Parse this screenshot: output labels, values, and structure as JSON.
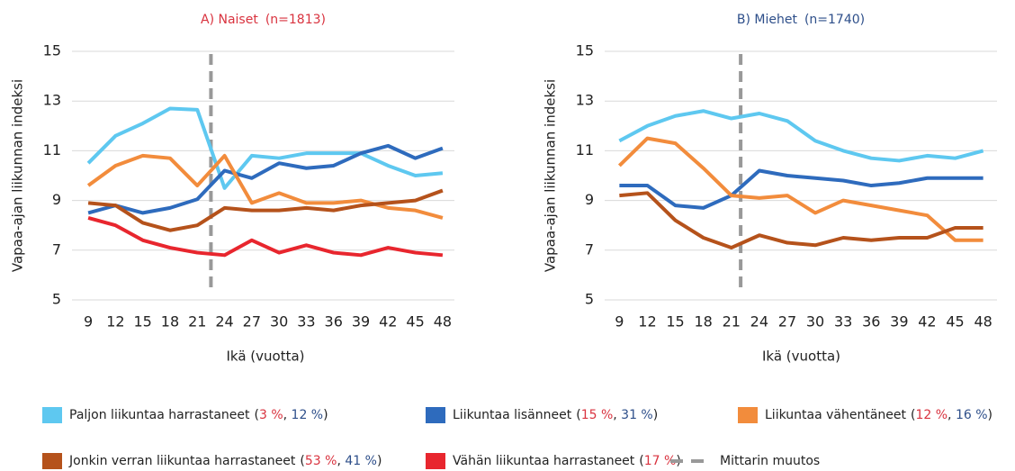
{
  "chart_data": [
    {
      "type": "line",
      "title": "A) Naiset",
      "subtitle": "(n=1813)",
      "title_color": "#d9333f",
      "xlabel": "Ikä (vuotta)",
      "ylabel": "Vapaa-ajan liikunnan indeksi",
      "x": [
        9,
        12,
        15,
        18,
        21,
        24,
        27,
        30,
        33,
        36,
        39,
        42,
        45,
        48
      ],
      "xlim": [
        8,
        49
      ],
      "xticks": [
        9,
        12,
        15,
        18,
        21,
        24,
        27,
        30,
        33,
        36,
        39,
        42,
        45,
        48
      ],
      "ylim": [
        5,
        15
      ],
      "yticks": [
        5,
        7,
        9,
        11,
        13,
        15
      ],
      "grid": true,
      "change_x": 22.5,
      "series": [
        {
          "name": "Paljon liikuntaa harrastaneet",
          "color": "#5ec8f0",
          "share": {
            "value": 3,
            "label": "3 %"
          },
          "values": [
            10.5,
            11.6,
            12.1,
            12.7,
            12.65,
            9.5,
            10.8,
            10.7,
            10.9,
            10.9,
            10.9,
            10.4,
            10.0,
            10.1
          ]
        },
        {
          "name": "Liikuntaa lisänneet",
          "color": "#2e6bbd",
          "share": {
            "value": 15,
            "label": "15 %"
          },
          "values": [
            8.5,
            8.8,
            8.5,
            8.7,
            9.05,
            10.2,
            9.9,
            10.5,
            10.3,
            10.4,
            10.9,
            11.2,
            10.7,
            11.1
          ]
        },
        {
          "name": "Liikuntaa vähentäneet",
          "color": "#f28c3c",
          "share": {
            "value": 12,
            "label": "12 %"
          },
          "values": [
            9.6,
            10.4,
            10.8,
            10.7,
            9.6,
            10.8,
            8.9,
            9.3,
            8.9,
            8.9,
            9.0,
            8.7,
            8.6,
            8.3
          ]
        },
        {
          "name": "Jonkin verran liikuntaa harrastaneet",
          "color": "#b5521b",
          "share": {
            "value": 53,
            "label": "53 %"
          },
          "values": [
            8.9,
            8.8,
            8.1,
            7.8,
            8.0,
            8.7,
            8.6,
            8.6,
            8.7,
            8.6,
            8.8,
            8.9,
            9.0,
            9.4
          ]
        },
        {
          "name": "Vähän liikuntaa harrastaneet",
          "color": "#e8262e",
          "share": {
            "value": 17,
            "label": "17 %"
          },
          "values": [
            8.3,
            8.0,
            7.4,
            7.1,
            6.9,
            6.8,
            7.4,
            6.9,
            7.2,
            6.9,
            6.8,
            7.1,
            6.9,
            6.8
          ]
        }
      ]
    },
    {
      "type": "line",
      "title": "B) Miehet",
      "subtitle": "(n=1740)",
      "title_color": "#2e4f8a",
      "xlabel": "Ikä (vuotta)",
      "ylabel": "Vapaa-ajan liikunnan indeksi",
      "x": [
        9,
        12,
        15,
        18,
        21,
        24,
        27,
        30,
        33,
        36,
        39,
        42,
        45,
        48
      ],
      "xlim": [
        8,
        49
      ],
      "xticks": [
        9,
        12,
        15,
        18,
        21,
        24,
        27,
        30,
        33,
        36,
        39,
        42,
        45,
        48
      ],
      "ylim": [
        5,
        15
      ],
      "yticks": [
        5,
        7,
        9,
        11,
        13,
        15
      ],
      "grid": true,
      "change_x": 22,
      "series": [
        {
          "name": "Paljon liikuntaa harrastaneet",
          "color": "#5ec8f0",
          "share": {
            "value": 12,
            "label": "12 %"
          },
          "values": [
            11.4,
            12.0,
            12.4,
            12.6,
            12.3,
            12.5,
            12.2,
            11.4,
            11.0,
            10.7,
            10.6,
            10.8,
            10.7,
            11.0
          ]
        },
        {
          "name": "Liikuntaa lisänneet",
          "color": "#2e6bbd",
          "share": {
            "value": 31,
            "label": "31 %"
          },
          "values": [
            9.6,
            9.6,
            8.8,
            8.7,
            9.2,
            10.2,
            10.0,
            9.9,
            9.8,
            9.6,
            9.7,
            9.9,
            9.9,
            9.9
          ]
        },
        {
          "name": "Liikuntaa vähentäneet",
          "color": "#f28c3c",
          "share": {
            "value": 16,
            "label": "16 %"
          },
          "values": [
            10.4,
            11.5,
            11.3,
            10.3,
            9.2,
            9.1,
            9.2,
            8.5,
            9.0,
            8.8,
            8.6,
            8.4,
            7.4,
            7.4
          ]
        },
        {
          "name": "Jonkin verran liikuntaa harrastaneet",
          "color": "#b5521b",
          "share": {
            "value": 41,
            "label": "41 %"
          },
          "values": [
            9.2,
            9.3,
            8.2,
            7.5,
            7.1,
            7.6,
            7.3,
            7.2,
            7.5,
            7.4,
            7.5,
            7.5,
            7.9,
            7.9
          ]
        }
      ]
    }
  ],
  "legend_punctuation": [
    "(",
    ", ",
    ")"
  ],
  "change_legend": "Mittarin muutos",
  "change_color": "#999999"
}
